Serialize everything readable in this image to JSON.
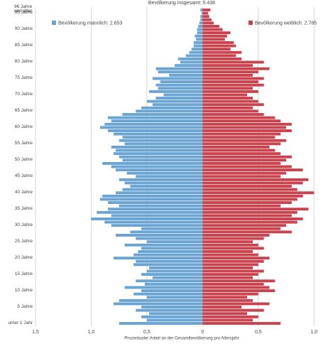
{
  "chart_data": {
    "type": "population-pyramid",
    "title": "Bevölkerung insgesamt: 5.438",
    "x_label": "Prozentualer Anteil an der Gesamtbevölkerung pro Altersjahr",
    "categories": [
      "unter 1 Jahr",
      null,
      null,
      null,
      null,
      "5 Jahre",
      null,
      null,
      null,
      null,
      "10 Jahre",
      null,
      null,
      null,
      null,
      "15 Jahre",
      null,
      null,
      null,
      null,
      "20 Jahre",
      null,
      null,
      null,
      null,
      "25 Jahre",
      null,
      null,
      null,
      null,
      "30 Jahre",
      null,
      null,
      null,
      null,
      "35 Jahre",
      null,
      null,
      null,
      null,
      "40 Jahre",
      null,
      null,
      null,
      null,
      "45 Jahre",
      null,
      null,
      null,
      null,
      "50 Jahre",
      null,
      null,
      null,
      null,
      "55 Jahre",
      null,
      null,
      null,
      null,
      "60 Jahre",
      null,
      null,
      null,
      null,
      "65 Jahre",
      null,
      null,
      null,
      null,
      "70 Jahre",
      null,
      null,
      null,
      null,
      "75 Jahre",
      null,
      null,
      null,
      null,
      "80 Jahre",
      null,
      null,
      null,
      null,
      "85 Jahre",
      null,
      null,
      null,
      null,
      "90 Jahre",
      null,
      null,
      null,
      null,
      "95 Jahre",
      "96 Jahre und älter"
    ],
    "series": [
      {
        "name": "Bevölkerung männlich: 2.653",
        "color": "#6aa4d2",
        "side": "left",
        "values": [
          0.75,
          0.5,
          0.55,
          0.48,
          0.6,
          0.55,
          0.8,
          0.75,
          0.5,
          0.62,
          0.55,
          0.7,
          0.52,
          0.6,
          0.45,
          0.55,
          0.5,
          0.48,
          0.62,
          0.6,
          0.8,
          0.62,
          0.58,
          0.55,
          0.7,
          0.5,
          0.6,
          0.78,
          0.65,
          0.55,
          0.82,
          0.88,
          1.0,
          0.82,
          0.95,
          0.85,
          0.75,
          0.85,
          0.92,
          0.9,
          0.78,
          0.72,
          0.65,
          0.7,
          0.75,
          0.6,
          0.68,
          0.78,
          0.82,
          0.9,
          0.72,
          0.75,
          0.8,
          0.78,
          0.82,
          0.7,
          0.75,
          0.72,
          0.8,
          0.85,
          0.92,
          0.88,
          0.82,
          0.85,
          0.72,
          0.6,
          0.55,
          0.45,
          0.5,
          0.42,
          0.35,
          0.48,
          0.4,
          0.42,
          0.38,
          0.45,
          0.3,
          0.4,
          0.42,
          0.25,
          0.2,
          0.22,
          0.15,
          0.12,
          0.1,
          0.08,
          0.08,
          0.06,
          0.07,
          0.05,
          0.05,
          0.04,
          0.03,
          0.02,
          0.02,
          0.01,
          0.02
        ]
      },
      {
        "name": "Bevölkerung weiblich: 2.785",
        "color": "#c9434f",
        "side": "right",
        "values": [
          0.7,
          0.45,
          0.5,
          0.4,
          0.55,
          0.35,
          0.6,
          0.45,
          0.4,
          0.5,
          0.65,
          0.6,
          0.55,
          0.65,
          0.45,
          0.5,
          0.55,
          0.45,
          0.5,
          0.55,
          0.6,
          0.5,
          0.45,
          0.55,
          0.5,
          0.45,
          0.55,
          0.6,
          0.8,
          0.7,
          0.75,
          0.85,
          0.9,
          0.8,
          0.85,
          0.95,
          0.7,
          0.8,
          0.85,
          0.9,
          1.0,
          0.85,
          0.8,
          0.9,
          0.95,
          0.7,
          0.75,
          0.9,
          0.8,
          0.7,
          0.75,
          0.8,
          0.7,
          0.65,
          0.6,
          0.7,
          0.75,
          0.65,
          0.7,
          0.8,
          0.75,
          0.8,
          0.7,
          0.65,
          0.55,
          0.5,
          0.45,
          0.55,
          0.5,
          0.45,
          0.4,
          0.5,
          0.45,
          0.55,
          0.5,
          0.55,
          0.45,
          0.5,
          0.6,
          0.45,
          0.55,
          0.35,
          0.3,
          0.35,
          0.25,
          0.3,
          0.28,
          0.2,
          0.22,
          0.25,
          0.18,
          0.15,
          0.1,
          0.08,
          0.06,
          0.05,
          0.07
        ]
      }
    ],
    "xlim": [
      -1.5,
      1.1
    ],
    "xticks": [
      {
        "value": -1.5,
        "label": "1,5"
      },
      {
        "value": -1,
        "label": "1,0"
      },
      {
        "value": -0.5,
        "label": "0,5"
      },
      0,
      {
        "value": 0.5,
        "label": "0,5"
      },
      {
        "value": 1,
        "label": "1,0"
      }
    ],
    "grid": true
  }
}
